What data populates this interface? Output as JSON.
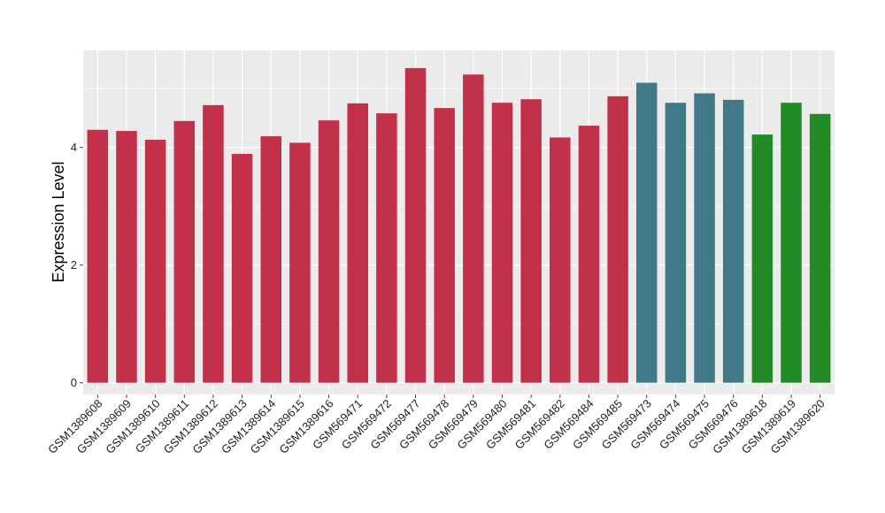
{
  "chart_data": {
    "type": "bar",
    "title": "",
    "xlabel": "",
    "ylabel": "Expression Level",
    "ylim": [
      -0.2,
      5.65
    ],
    "yticks": [
      0,
      2,
      4
    ],
    "grid": true,
    "legend": "none",
    "panel_background": "#ebebeb",
    "categories": [
      "GSM1389608",
      "GSM1389609",
      "GSM1389610",
      "GSM1389611",
      "GSM1389612",
      "GSM1389613",
      "GSM1389614",
      "GSM1389615",
      "GSM1389616",
      "GSM569471",
      "GSM569472",
      "GSM569477",
      "GSM569478",
      "GSM569479",
      "GSM569480",
      "GSM569481",
      "GSM569482",
      "GSM569484",
      "GSM569485",
      "GSM569473",
      "GSM569474",
      "GSM569475",
      "GSM569476",
      "GSM1389618",
      "GSM1389619",
      "GSM1389620"
    ],
    "values": [
      4.3,
      4.28,
      4.13,
      4.45,
      4.72,
      3.89,
      4.19,
      4.08,
      4.46,
      4.75,
      4.58,
      5.35,
      4.67,
      5.24,
      4.76,
      4.82,
      4.17,
      4.37,
      4.87,
      5.1,
      4.76,
      4.92,
      4.81,
      4.22,
      4.76,
      4.57
    ],
    "bar_colors": [
      "#c3304a",
      "#c3304a",
      "#c3304a",
      "#c3304a",
      "#c3304a",
      "#c3304a",
      "#c3304a",
      "#c3304a",
      "#c3304a",
      "#c3304a",
      "#c3304a",
      "#c3304a",
      "#c3304a",
      "#c3304a",
      "#c3304a",
      "#c3304a",
      "#c3304a",
      "#c3304a",
      "#c3304a",
      "#427989",
      "#427989",
      "#427989",
      "#427989",
      "#228b28",
      "#228b28",
      "#228b28"
    ]
  }
}
